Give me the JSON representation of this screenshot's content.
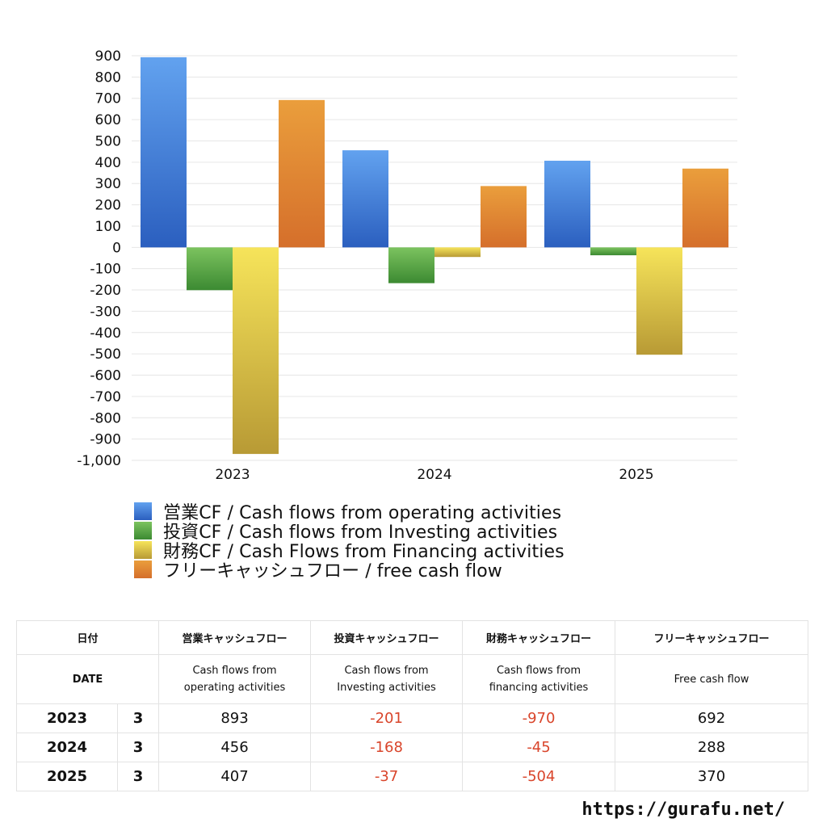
{
  "chart_data": {
    "type": "bar",
    "categories": [
      "2023",
      "2024",
      "2025"
    ],
    "series": [
      {
        "name": "営業CF / Cash flows from operating activities",
        "values": [
          893,
          456,
          407
        ],
        "color": "#3f7fe0"
      },
      {
        "name": "投資CF / Cash flows from Investing activities",
        "values": [
          -201,
          -168,
          -37
        ],
        "color": "#4e9f3d"
      },
      {
        "name": "財務CF / Cash Flows from Financing activities",
        "values": [
          -970,
          -45,
          -504
        ],
        "color": "#e4c83f"
      },
      {
        "name": "フリーキャッシュフロー / free cash flow",
        "values": [
          692,
          288,
          370
        ],
        "color": "#e07f30"
      }
    ],
    "ylim": [
      -1000,
      900
    ],
    "yticks": [
      "900",
      "800",
      "700",
      "600",
      "500",
      "400",
      "300",
      "200",
      "100",
      "0",
      "-100",
      "-200",
      "-300",
      "-400",
      "-500",
      "-600",
      "-700",
      "-800",
      "-900",
      "-1,000"
    ],
    "grid": true,
    "legend_position": "bottom-left"
  },
  "table": {
    "header_jp": [
      "日付",
      "営業キャッシュフロー",
      "投資キャッシュフロー",
      "財務キャッシュフロー",
      "フリーキャッシュフロー"
    ],
    "header_en": [
      "DATE",
      "Cash flows from operating activities",
      "Cash flows from Investing activities",
      "Cash flows from financing activities",
      "Free cash flow"
    ],
    "rows": [
      {
        "year": "2023",
        "month": "3",
        "values": [
          "893",
          "-201",
          "-970",
          "692"
        ]
      },
      {
        "year": "2024",
        "month": "3",
        "values": [
          "456",
          "-168",
          "-45",
          "288"
        ]
      },
      {
        "year": "2025",
        "month": "3",
        "values": [
          "407",
          "-37",
          "-504",
          "370"
        ]
      }
    ]
  },
  "site_url": "https://gurafu.net/"
}
